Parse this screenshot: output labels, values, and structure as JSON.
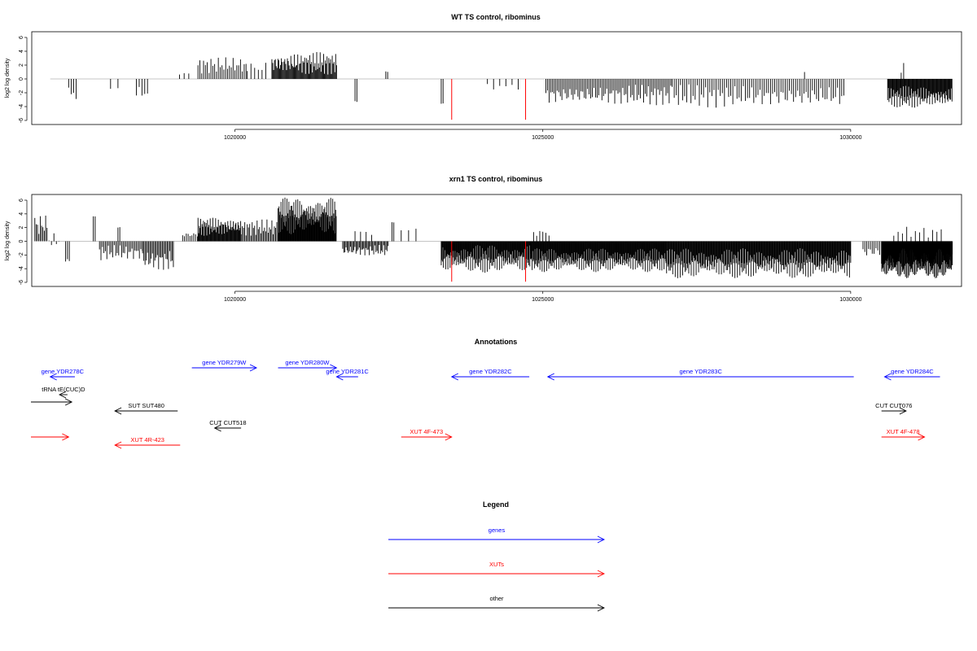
{
  "chart_data": [
    {
      "type": "bar",
      "title": "WT TS control, ribominus",
      "ylabel": "log2 log density",
      "xlabel": "",
      "xlim": [
        1016700,
        1031800
      ],
      "ylim": [
        -6,
        6
      ],
      "yticks": [
        6,
        4,
        2,
        0,
        -2,
        -4,
        -6
      ],
      "xticks": [
        1020000,
        1025000,
        1030000
      ],
      "xtick_labels": [
        "1020000",
        "1025000",
        "1030000"
      ],
      "grid": false,
      "baseline": 0,
      "colors": {
        "bars": "#000000",
        "highlight": "#ff0000",
        "baseline": "#b0b0b0"
      },
      "segments": [
        {
          "from": 1017300,
          "to": 1017420,
          "step": 40,
          "min": -3.2,
          "max": -1.0,
          "phase": 0.3
        },
        {
          "from": 1017980,
          "to": 1018100,
          "step": 120,
          "min": -1.6,
          "max": -1.0,
          "phase": 1.1
        },
        {
          "from": 1018400,
          "to": 1018620,
          "step": 45,
          "min": -3.0,
          "max": -1.0,
          "phase": 2.0
        },
        {
          "from": 1019100,
          "to": 1019250,
          "step": 75,
          "min": 0.6,
          "max": 1.0,
          "phase": 0.4
        },
        {
          "from": 1019400,
          "to": 1020200,
          "step": 30,
          "min": 0.8,
          "max": 3.2,
          "phase": 1.7
        },
        {
          "from": 1020200,
          "to": 1020500,
          "step": 60,
          "min": 0.6,
          "max": 2.6,
          "phase": 3.3
        },
        {
          "from": 1020600,
          "to": 1021650,
          "step": 14,
          "min": 0.6,
          "max": 3.9,
          "phase": 0.9
        },
        {
          "from": 1021950,
          "to": 1021980,
          "step": 30,
          "min": -3.4,
          "max": -3.2,
          "phase": 0.1
        },
        {
          "from": 1022450,
          "to": 1022480,
          "step": 30,
          "min": 1.0,
          "max": 1.1,
          "phase": 0.2
        },
        {
          "from": 1023350,
          "to": 1023380,
          "step": 30,
          "min": -3.6,
          "max": -3.5,
          "phase": 0.7
        },
        {
          "from": 1024100,
          "to": 1024600,
          "step": 100,
          "min": -1.6,
          "max": -0.6,
          "phase": 2.4
        },
        {
          "from": 1025050,
          "to": 1027100,
          "step": 26,
          "min": -3.8,
          "max": -0.8,
          "phase": 1.3
        },
        {
          "from": 1027100,
          "to": 1029900,
          "step": 34,
          "min": -4.2,
          "max": -0.8,
          "phase": 0.6
        },
        {
          "from": 1030600,
          "to": 1031650,
          "step": 11,
          "min": -4.2,
          "max": -1.0,
          "phase": 2.8
        }
      ],
      "points": [
        {
          "x": 1030860,
          "y": 2.3
        },
        {
          "x": 1029250,
          "y": 1.0
        },
        {
          "x": 1030820,
          "y": 0.9
        }
      ],
      "highlights": [
        {
          "x": 1023520,
          "y": -5.9
        },
        {
          "x": 1024720,
          "y": -5.9
        }
      ]
    },
    {
      "type": "bar",
      "title": "xrn1 TS control, ribominus",
      "ylabel": "log2 log density",
      "xlabel": "",
      "xlim": [
        1016700,
        1031800
      ],
      "ylim": [
        -6,
        6
      ],
      "yticks": [
        6,
        4,
        2,
        0,
        -2,
        -4,
        -6
      ],
      "xticks": [
        1020000,
        1025000,
        1030000
      ],
      "xtick_labels": [
        "1020000",
        "1025000",
        "1030000"
      ],
      "grid": false,
      "baseline": 0,
      "colors": {
        "bars": "#000000",
        "highlight": "#ff0000",
        "baseline": "#b0b0b0"
      },
      "segments": [
        {
          "from": 1016750,
          "to": 1016950,
          "step": 22,
          "min": 0.5,
          "max": 4.2,
          "phase": 0.2
        },
        {
          "from": 1016980,
          "to": 1017150,
          "step": 40,
          "min": -1.0,
          "max": 1.2,
          "phase": 1.6
        },
        {
          "from": 1017250,
          "to": 1017320,
          "step": 30,
          "min": -3.9,
          "max": -1.0,
          "phase": 0.5
        },
        {
          "from": 1017700,
          "to": 1017730,
          "step": 30,
          "min": 3.6,
          "max": 3.7,
          "phase": 0.1
        },
        {
          "from": 1018100,
          "to": 1018130,
          "step": 30,
          "min": 2.0,
          "max": 2.1,
          "phase": 0.1
        },
        {
          "from": 1017800,
          "to": 1018500,
          "step": 24,
          "min": -2.8,
          "max": -0.5,
          "phase": 2.2
        },
        {
          "from": 1018500,
          "to": 1019000,
          "step": 20,
          "min": -4.5,
          "max": -1.0,
          "phase": 0.8
        },
        {
          "from": 1019150,
          "to": 1019400,
          "step": 30,
          "min": 0.5,
          "max": 1.4,
          "phase": 1.4
        },
        {
          "from": 1019400,
          "to": 1020100,
          "step": 11,
          "min": 0.8,
          "max": 3.5,
          "phase": 3.1
        },
        {
          "from": 1020100,
          "to": 1020700,
          "step": 20,
          "min": 0.8,
          "max": 3.2,
          "phase": 0.6
        },
        {
          "from": 1020700,
          "to": 1021650,
          "step": 8,
          "min": 1.0,
          "max": 6.4,
          "phase": 2.7
        },
        {
          "from": 1021750,
          "to": 1022500,
          "step": 18,
          "min": -2.2,
          "max": -0.5,
          "phase": 1.9
        },
        {
          "from": 1021950,
          "to": 1022300,
          "step": 90,
          "min": 0.8,
          "max": 1.8,
          "phase": 0.3
        },
        {
          "from": 1022550,
          "to": 1022580,
          "step": 30,
          "min": 2.7,
          "max": 2.8,
          "phase": 0.1
        },
        {
          "from": 1022700,
          "to": 1022950,
          "step": 120,
          "min": 1.4,
          "max": 2.0,
          "phase": 1.2
        },
        {
          "from": 1023350,
          "to": 1024800,
          "step": 9,
          "min": -4.6,
          "max": -0.5,
          "phase": 0.4
        },
        {
          "from": 1024850,
          "to": 1025100,
          "step": 50,
          "min": 0.6,
          "max": 1.9,
          "phase": 2.9
        },
        {
          "from": 1024800,
          "to": 1027000,
          "step": 9,
          "min": -4.5,
          "max": -1.0,
          "phase": 1.0
        },
        {
          "from": 1027000,
          "to": 1030000,
          "step": 10,
          "min": -5.4,
          "max": -1.0,
          "phase": 2.3
        },
        {
          "from": 1030200,
          "to": 1030480,
          "step": 30,
          "min": -2.5,
          "max": -0.5,
          "phase": 0.8
        },
        {
          "from": 1030500,
          "to": 1031650,
          "step": 5,
          "min": -5.4,
          "max": -1.0,
          "phase": 1.5
        },
        {
          "from": 1030700,
          "to": 1031500,
          "step": 70,
          "min": 0.5,
          "max": 2.2,
          "phase": 0.6
        }
      ],
      "points": [],
      "highlights": [
        {
          "x": 1023520,
          "y": -5.9
        },
        {
          "x": 1024720,
          "y": -5.9
        }
      ]
    }
  ],
  "annotations": {
    "title": "Annotations",
    "xlim": [
      1016700,
      1031800
    ],
    "features": [
      {
        "label": "gene YDR278C",
        "color": "#0000ff",
        "start": 1017400,
        "end": 1017000,
        "row": 1
      },
      {
        "label": "gene YDR279W",
        "color": "#0000ff",
        "start": 1019300,
        "end": 1020350,
        "row": 0
      },
      {
        "label": "gene YDR280W",
        "color": "#0000ff",
        "start": 1020700,
        "end": 1021650,
        "row": 0
      },
      {
        "label": "gene YDR281C",
        "color": "#0000ff",
        "start": 1022000,
        "end": 1021650,
        "row": 1
      },
      {
        "label": "gene YDR282C",
        "color": "#0000ff",
        "start": 1024780,
        "end": 1023520,
        "row": 1
      },
      {
        "label": "gene YDR283C",
        "color": "#0000ff",
        "start": 1030050,
        "end": 1025080,
        "row": 1
      },
      {
        "label": "gene YDR284C",
        "color": "#0000ff",
        "start": 1031450,
        "end": 1030550,
        "row": 1
      },
      {
        "label": "tRNA tE(CUC)D",
        "color": "#000000",
        "start": 1017280,
        "end": 1017150,
        "row": 2
      },
      {
        "label": "",
        "color": "#000000",
        "start": 1016520,
        "end": 1017350,
        "row": 3
      },
      {
        "label": "SUT SUT480",
        "color": "#000000",
        "start": 1019070,
        "end": 1018050,
        "row": 4
      },
      {
        "label": "CUT CUT518",
        "color": "#000000",
        "start": 1020100,
        "end": 1019670,
        "row": 5
      },
      {
        "label": "CUT CUT076",
        "color": "#000000",
        "start": 1030500,
        "end": 1030900,
        "row": 4
      },
      {
        "label": "",
        "color": "#ff0000",
        "start": 1016500,
        "end": 1017300,
        "row": 6
      },
      {
        "label": "XUT 4R-423",
        "color": "#ff0000",
        "start": 1019110,
        "end": 1018050,
        "row": 7
      },
      {
        "label": "XUT 4F-473",
        "color": "#ff0000",
        "start": 1022700,
        "end": 1023520,
        "row": 6
      },
      {
        "label": "XUT 4F-478",
        "color": "#ff0000",
        "start": 1030500,
        "end": 1031200,
        "row": 6
      }
    ]
  },
  "legend": {
    "title": "Legend",
    "items": [
      {
        "label": "genes",
        "color": "#0000ff"
      },
      {
        "label": "XUTs",
        "color": "#ff0000"
      },
      {
        "label": "other",
        "color": "#000000"
      }
    ]
  }
}
